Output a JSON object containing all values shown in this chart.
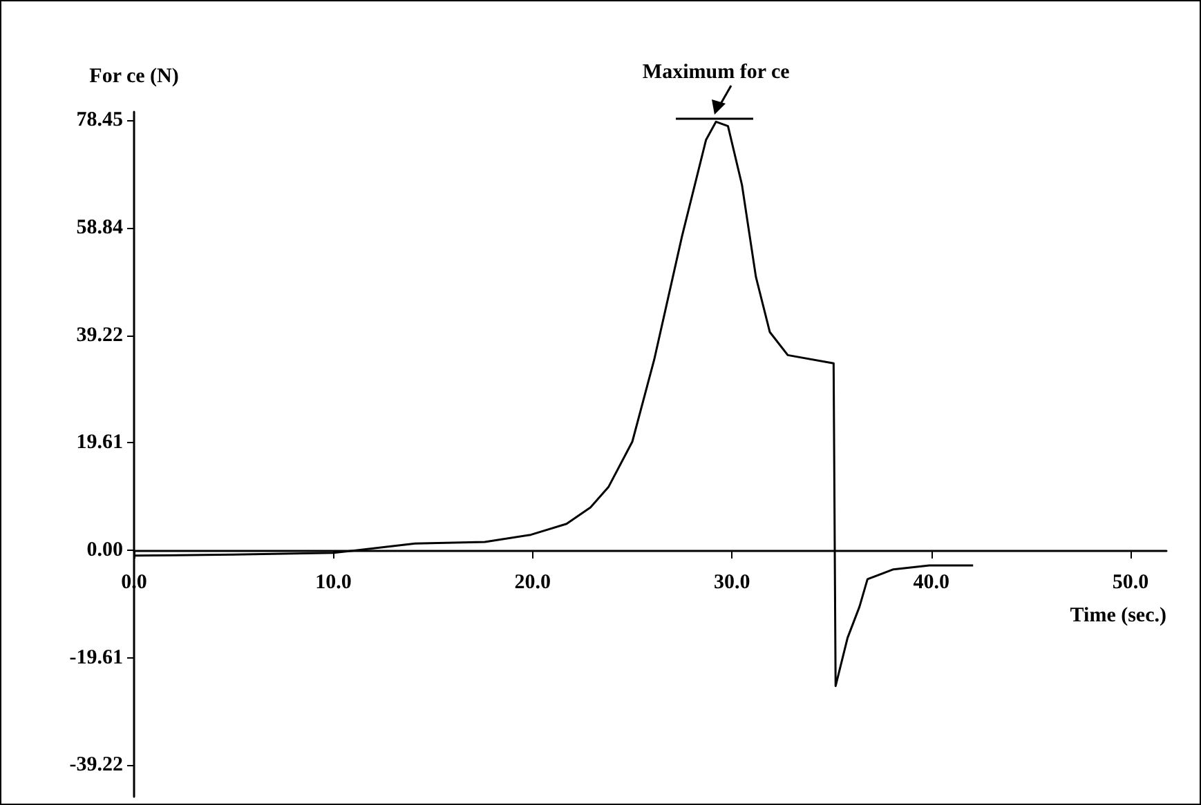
{
  "chart_data": {
    "type": "line",
    "xlabel": "Time (sec.)",
    "ylabel": "For ce (N)",
    "annotations": [
      {
        "text": "Maximum for ce",
        "x": 29.2,
        "y": 78.2
      }
    ],
    "series": [
      {
        "color": "#000000",
        "x": [
          0,
          5,
          10,
          14.1,
          17.6,
          19.9,
          21.7,
          22.9,
          23.8,
          25.0,
          26.1,
          27.5,
          28.7,
          29.2,
          29.8,
          30.5,
          31.2,
          31.9,
          32.8,
          35.1,
          35.2,
          35.8,
          36.4,
          36.8,
          38.1,
          39.9,
          42.1
        ],
        "values": [
          -1,
          -0.8,
          -0.5,
          1.2,
          1.5,
          2.8,
          4.8,
          7.8,
          11.5,
          19.8,
          34.8,
          57.4,
          74.9,
          78.2,
          77.4,
          66.7,
          49.9,
          39.8,
          35.6,
          34.1,
          -24.8,
          -16,
          -10.3,
          -5.3,
          -3.5,
          -2.8,
          -2.8
        ]
      }
    ],
    "xlim": [
      0,
      51.8
    ],
    "ylim": [
      -45,
      80
    ],
    "xticks": [
      {
        "value": 0,
        "label": "0.0"
      },
      {
        "value": 10,
        "label": "10.0"
      },
      {
        "value": 20,
        "label": "20.0"
      },
      {
        "value": 30,
        "label": "30.0"
      },
      {
        "value": 40,
        "label": "40.0"
      },
      {
        "value": 50,
        "label": "50.0"
      }
    ],
    "yticks": [
      78.45,
      58.84,
      39.22,
      19.61,
      {
        "value": 0,
        "label": "0.00"
      },
      -19.61,
      -39.22
    ],
    "marker": "none",
    "line_style": "solid"
  }
}
